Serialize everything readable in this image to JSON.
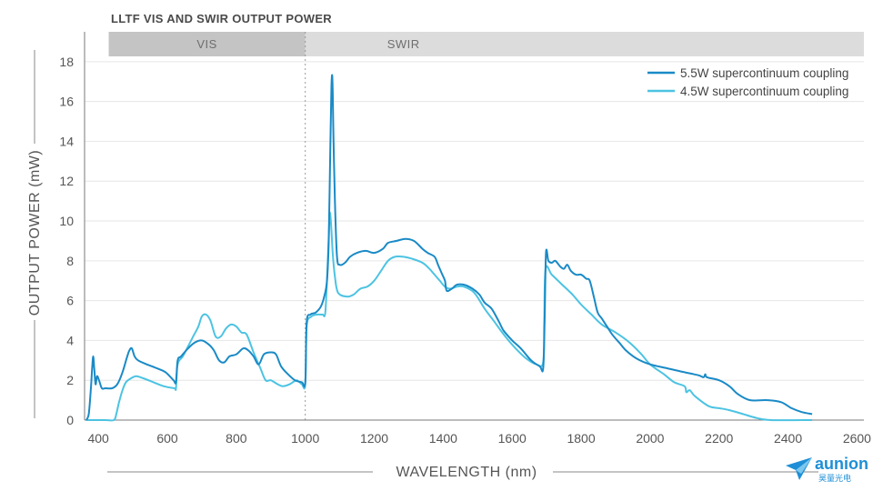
{
  "chart_data": {
    "type": "line",
    "title": "LLTF VIS AND SWIR OUTPUT POWER",
    "xlabel": "WAVELENGTH (nm)",
    "ylabel": "OUTPUT POWER (mW)",
    "xlim": [
      360,
      2620
    ],
    "ylim": [
      0,
      19.5
    ],
    "xticks": [
      400,
      600,
      800,
      1000,
      1200,
      1400,
      1600,
      1800,
      2000,
      2200,
      2400,
      2600
    ],
    "yticks": [
      0,
      2,
      4,
      6,
      8,
      10,
      12,
      14,
      16,
      18
    ],
    "grid": true,
    "legend_position": "top-right",
    "bands": [
      {
        "label": "VIS",
        "from": 430,
        "to": 1000,
        "color": "#c4c4c4"
      },
      {
        "label": "SWIR",
        "from": 1000,
        "to": 2620,
        "color": "#dcdcdc"
      }
    ],
    "divider_x": 1000,
    "series": [
      {
        "name": "5.5W supercontinuum coupling",
        "color": "#1a8ac6",
        "points": [
          [
            365,
            0
          ],
          [
            372,
            0.3
          ],
          [
            378,
            1.5
          ],
          [
            382,
            2.6
          ],
          [
            385,
            3.2
          ],
          [
            388,
            2.6
          ],
          [
            392,
            1.8
          ],
          [
            396,
            2.2
          ],
          [
            402,
            2.0
          ],
          [
            410,
            1.6
          ],
          [
            420,
            1.6
          ],
          [
            440,
            1.6
          ],
          [
            455,
            1.8
          ],
          [
            470,
            2.4
          ],
          [
            482,
            3.1
          ],
          [
            490,
            3.5
          ],
          [
            497,
            3.6
          ],
          [
            505,
            3.2
          ],
          [
            515,
            3.0
          ],
          [
            540,
            2.8
          ],
          [
            570,
            2.6
          ],
          [
            595,
            2.4
          ],
          [
            618,
            2.0
          ],
          [
            625,
            1.9
          ],
          [
            630,
            3.0
          ],
          [
            640,
            3.2
          ],
          [
            660,
            3.6
          ],
          [
            680,
            3.9
          ],
          [
            700,
            4.0
          ],
          [
            720,
            3.8
          ],
          [
            735,
            3.5
          ],
          [
            750,
            3.0
          ],
          [
            765,
            2.9
          ],
          [
            780,
            3.2
          ],
          [
            800,
            3.3
          ],
          [
            820,
            3.6
          ],
          [
            835,
            3.5
          ],
          [
            850,
            3.2
          ],
          [
            865,
            2.8
          ],
          [
            880,
            3.3
          ],
          [
            900,
            3.4
          ],
          [
            915,
            3.3
          ],
          [
            930,
            2.7
          ],
          [
            950,
            2.3
          ],
          [
            970,
            2.0
          ],
          [
            990,
            1.9
          ],
          [
            1000,
            1.9
          ],
          [
            1004,
            4.9
          ],
          [
            1015,
            5.3
          ],
          [
            1030,
            5.4
          ],
          [
            1045,
            5.7
          ],
          [
            1055,
            6.2
          ],
          [
            1063,
            7.0
          ],
          [
            1068,
            9.0
          ],
          [
            1072,
            13.0
          ],
          [
            1076,
            16.8
          ],
          [
            1079,
            17.0
          ],
          [
            1082,
            14.0
          ],
          [
            1086,
            11.0
          ],
          [
            1092,
            8.2
          ],
          [
            1100,
            7.8
          ],
          [
            1115,
            7.9
          ],
          [
            1130,
            8.2
          ],
          [
            1150,
            8.4
          ],
          [
            1175,
            8.5
          ],
          [
            1200,
            8.4
          ],
          [
            1225,
            8.6
          ],
          [
            1240,
            8.9
          ],
          [
            1265,
            9.0
          ],
          [
            1290,
            9.1
          ],
          [
            1315,
            9.0
          ],
          [
            1340,
            8.6
          ],
          [
            1355,
            8.4
          ],
          [
            1375,
            8.2
          ],
          [
            1385,
            7.8
          ],
          [
            1395,
            7.4
          ],
          [
            1405,
            7.0
          ],
          [
            1410,
            6.5
          ],
          [
            1425,
            6.6
          ],
          [
            1440,
            6.8
          ],
          [
            1460,
            6.8
          ],
          [
            1485,
            6.6
          ],
          [
            1505,
            6.3
          ],
          [
            1520,
            5.9
          ],
          [
            1540,
            5.6
          ],
          [
            1560,
            5.0
          ],
          [
            1575,
            4.5
          ],
          [
            1600,
            4.0
          ],
          [
            1625,
            3.6
          ],
          [
            1655,
            3.0
          ],
          [
            1680,
            2.7
          ],
          [
            1690,
            2.6
          ],
          [
            1694,
            5.0
          ],
          [
            1698,
            8.4
          ],
          [
            1705,
            8.0
          ],
          [
            1715,
            7.9
          ],
          [
            1725,
            8.0
          ],
          [
            1740,
            7.7
          ],
          [
            1750,
            7.6
          ],
          [
            1760,
            7.8
          ],
          [
            1770,
            7.5
          ],
          [
            1785,
            7.3
          ],
          [
            1800,
            7.3
          ],
          [
            1815,
            7.1
          ],
          [
            1825,
            7.0
          ],
          [
            1838,
            6.1
          ],
          [
            1848,
            5.4
          ],
          [
            1860,
            5.1
          ],
          [
            1875,
            4.7
          ],
          [
            1890,
            4.3
          ],
          [
            1910,
            3.9
          ],
          [
            1930,
            3.5
          ],
          [
            1960,
            3.1
          ],
          [
            2000,
            2.8
          ],
          [
            2050,
            2.6
          ],
          [
            2100,
            2.4
          ],
          [
            2140,
            2.25
          ],
          [
            2155,
            2.15
          ],
          [
            2160,
            2.3
          ],
          [
            2165,
            2.15
          ],
          [
            2200,
            2.0
          ],
          [
            2230,
            1.7
          ],
          [
            2255,
            1.3
          ],
          [
            2290,
            1.0
          ],
          [
            2340,
            1.0
          ],
          [
            2380,
            0.9
          ],
          [
            2410,
            0.6
          ],
          [
            2440,
            0.4
          ],
          [
            2470,
            0.3
          ]
        ]
      },
      {
        "name": "4.5W supercontinuum coupling",
        "color": "#4cc3e2",
        "points": [
          [
            365,
            0
          ],
          [
            420,
            0
          ],
          [
            445,
            0
          ],
          [
            452,
            0.3
          ],
          [
            460,
            0.9
          ],
          [
            470,
            1.5
          ],
          [
            480,
            1.9
          ],
          [
            495,
            2.1
          ],
          [
            510,
            2.2
          ],
          [
            530,
            2.1
          ],
          [
            560,
            1.9
          ],
          [
            590,
            1.7
          ],
          [
            620,
            1.6
          ],
          [
            625,
            1.6
          ],
          [
            630,
            2.8
          ],
          [
            645,
            3.2
          ],
          [
            660,
            3.7
          ],
          [
            675,
            4.2
          ],
          [
            690,
            4.7
          ],
          [
            700,
            5.2
          ],
          [
            712,
            5.3
          ],
          [
            725,
            5.0
          ],
          [
            740,
            4.2
          ],
          [
            755,
            4.2
          ],
          [
            770,
            4.6
          ],
          [
            785,
            4.8
          ],
          [
            800,
            4.7
          ],
          [
            815,
            4.4
          ],
          [
            830,
            4.3
          ],
          [
            850,
            3.4
          ],
          [
            870,
            2.6
          ],
          [
            885,
            2.0
          ],
          [
            900,
            2.0
          ],
          [
            920,
            1.8
          ],
          [
            935,
            1.7
          ],
          [
            955,
            1.8
          ],
          [
            975,
            2.0
          ],
          [
            990,
            1.8
          ],
          [
            1000,
            1.8
          ],
          [
            1004,
            4.7
          ],
          [
            1018,
            5.2
          ],
          [
            1035,
            5.3
          ],
          [
            1050,
            5.3
          ],
          [
            1058,
            5.4
          ],
          [
            1064,
            7.5
          ],
          [
            1068,
            9.2
          ],
          [
            1071,
            10.4
          ],
          [
            1075,
            9.8
          ],
          [
            1080,
            8.3
          ],
          [
            1086,
            7.2
          ],
          [
            1095,
            6.4
          ],
          [
            1120,
            6.2
          ],
          [
            1140,
            6.3
          ],
          [
            1160,
            6.6
          ],
          [
            1180,
            6.7
          ],
          [
            1200,
            7.0
          ],
          [
            1220,
            7.5
          ],
          [
            1240,
            8.0
          ],
          [
            1260,
            8.2
          ],
          [
            1285,
            8.2
          ],
          [
            1310,
            8.1
          ],
          [
            1340,
            7.9
          ],
          [
            1360,
            7.6
          ],
          [
            1375,
            7.3
          ],
          [
            1390,
            7.0
          ],
          [
            1405,
            6.7
          ],
          [
            1420,
            6.6
          ],
          [
            1440,
            6.7
          ],
          [
            1460,
            6.7
          ],
          [
            1490,
            6.4
          ],
          [
            1520,
            5.6
          ],
          [
            1550,
            4.9
          ],
          [
            1580,
            4.2
          ],
          [
            1610,
            3.6
          ],
          [
            1640,
            3.1
          ],
          [
            1670,
            2.8
          ],
          [
            1690,
            2.9
          ],
          [
            1693,
            5.0
          ],
          [
            1697,
            7.6
          ],
          [
            1715,
            7.3
          ],
          [
            1745,
            6.8
          ],
          [
            1775,
            6.3
          ],
          [
            1800,
            5.8
          ],
          [
            1830,
            5.3
          ],
          [
            1860,
            4.8
          ],
          [
            1900,
            4.4
          ],
          [
            1940,
            3.9
          ],
          [
            1975,
            3.3
          ],
          [
            2000,
            2.8
          ],
          [
            2040,
            2.3
          ],
          [
            2070,
            1.9
          ],
          [
            2100,
            1.7
          ],
          [
            2105,
            1.4
          ],
          [
            2115,
            1.5
          ],
          [
            2130,
            1.2
          ],
          [
            2170,
            0.7
          ],
          [
            2200,
            0.6
          ],
          [
            2230,
            0.5
          ],
          [
            2270,
            0.3
          ],
          [
            2310,
            0.1
          ],
          [
            2350,
            0
          ],
          [
            2470,
            0
          ]
        ]
      }
    ]
  },
  "logo": {
    "brand": "aunion",
    "sub": "昊量光电",
    "color": "#1e8fd6"
  }
}
